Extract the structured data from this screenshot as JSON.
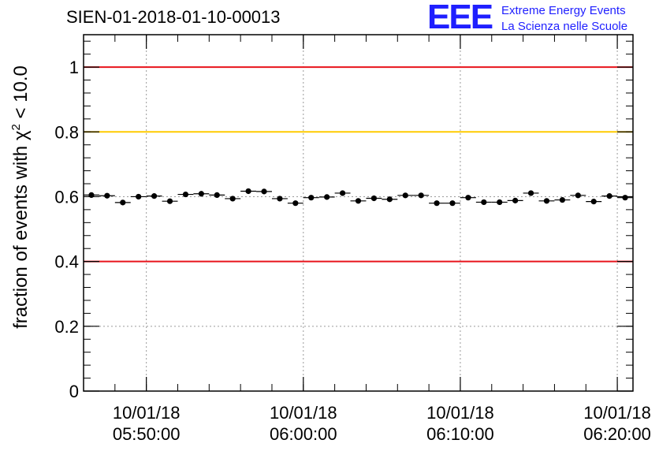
{
  "header": {
    "title": "SIEN-01-2018-01-10-00013",
    "logo_mark": "EEE",
    "logo_line1": "Extreme Energy Events",
    "logo_line2": "La Scienza nelle Scuole"
  },
  "chart_data": {
    "type": "scatter",
    "title": "SIEN-01-2018-01-10-00013",
    "ylabel": "fraction of events with χ² < 10.0",
    "ylabel_parts": {
      "pre": "fraction of events with χ",
      "sup": "2",
      "post": " < 10.0"
    },
    "xlabel": "",
    "x_unit": "minutes",
    "xlim": [
      28,
      63
    ],
    "ylim": [
      0,
      1.1
    ],
    "x_ticks": [
      {
        "x": 32,
        "date": "10/01/18",
        "time": "05:50:00"
      },
      {
        "x": 42,
        "date": "10/01/18",
        "time": "06:00:00"
      },
      {
        "x": 52,
        "date": "10/01/18",
        "time": "06:10:00"
      },
      {
        "x": 62,
        "date": "10/01/18",
        "time": "06:20:00"
      }
    ],
    "y_ticks": [
      {
        "v": 0,
        "label": "0"
      },
      {
        "v": 0.2,
        "label": "0.2"
      },
      {
        "v": 0.4,
        "label": "0.4"
      },
      {
        "v": 0.6,
        "label": "0.6"
      },
      {
        "v": 0.8,
        "label": "0.8"
      },
      {
        "v": 1,
        "label": "1"
      }
    ],
    "grid": true,
    "reference_lines": [
      {
        "y": 1.0,
        "color": "#e8141c"
      },
      {
        "y": 0.8,
        "color": "#ffcc00"
      },
      {
        "y": 0.4,
        "color": "#e8141c"
      }
    ],
    "marker_color": "#000000",
    "bin_width": 1,
    "y_error": 0.008,
    "series": [
      {
        "x": [
          28.5,
          29.5,
          30.5,
          31.5,
          32.5,
          33.5,
          34.5,
          35.5,
          36.5,
          37.5,
          38.5,
          39.5,
          40.5,
          41.5,
          42.5,
          43.5,
          44.5,
          45.5,
          46.5,
          47.5,
          48.5,
          49.5,
          50.5,
          51.5,
          52.5,
          53.5,
          54.5,
          55.5,
          56.5,
          57.5,
          58.5,
          59.5,
          60.5,
          61.5,
          62.5
        ],
        "y": [
          0.605,
          0.603,
          0.582,
          0.6,
          0.602,
          0.586,
          0.607,
          0.609,
          0.605,
          0.594,
          0.617,
          0.616,
          0.594,
          0.58,
          0.597,
          0.599,
          0.611,
          0.587,
          0.595,
          0.592,
          0.604,
          0.604,
          0.58,
          0.58,
          0.597,
          0.583,
          0.583,
          0.588,
          0.611,
          0.587,
          0.59,
          0.604,
          0.585,
          0.602,
          0.597
        ]
      }
    ]
  }
}
